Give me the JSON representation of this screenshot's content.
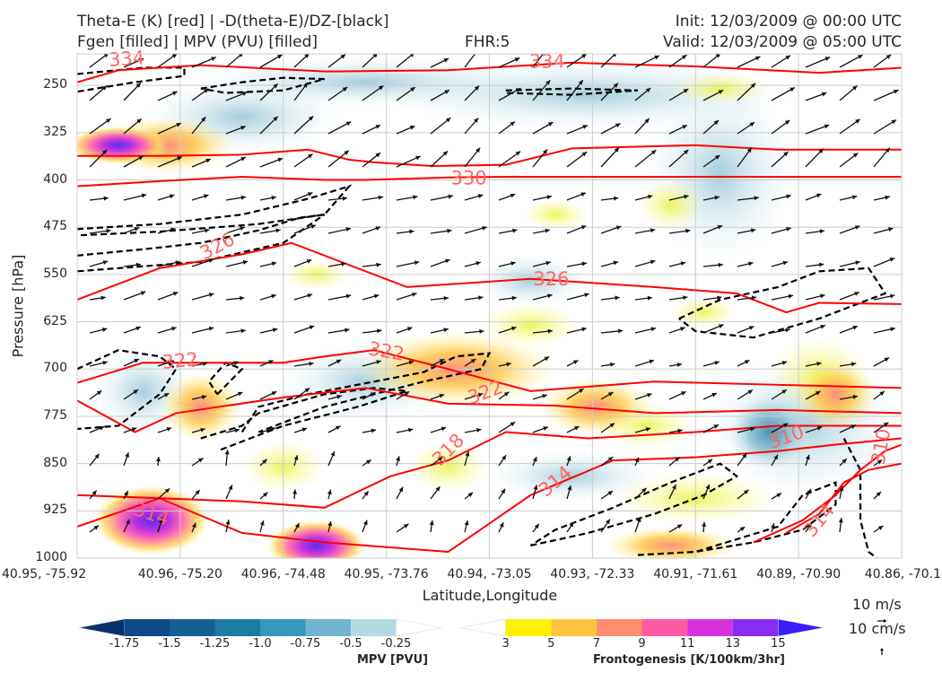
{
  "header": {
    "left_line1": "Theta-E (K) [red] | -D(theta-E)/DZ-[black]",
    "left_line2": "Fgen [filled] | MPV (PVU) [filled]",
    "center": "FHR:5",
    "right_line1": "Init: 12/03/2009 @ 00:00 UTC",
    "right_line2": "Valid: 12/03/2009 @ 05:00 UTC"
  },
  "colors": {
    "theta_e": "#ff0000",
    "theta_e_label": "#ff6666",
    "dtheta_dz": "#000000",
    "mpv_outline": "#a8b6cc",
    "axes_grid": "#cccccc"
  },
  "chart_data": {
    "type": "heatmap",
    "subtype": "vertical cross-section",
    "xlabel": "Latitude,Longitude",
    "ylabel": "Pressure [hPa]",
    "x_ticks": [
      "40.95, -75.92",
      "40.96, -75.20",
      "40.96, -74.48",
      "40.95, -73.76",
      "40.94, -73.05",
      "40.93, -72.33",
      "40.91, -71.61",
      "40.89, -70.90",
      "40.86, -70.1"
    ],
    "y_ticks": [
      "250",
      "325",
      "400",
      "475",
      "550",
      "625",
      "700",
      "775",
      "850",
      "925",
      "1000"
    ],
    "ylim": [
      1000,
      200
    ],
    "theta_e_contours": [
      {
        "label": "334",
        "level": 334
      },
      {
        "label": "330",
        "level": 330
      },
      {
        "label": "326",
        "level": 326
      },
      {
        "label": "322",
        "level": 322
      },
      {
        "label": "318",
        "level": 318
      },
      {
        "label": "314",
        "level": 314
      },
      {
        "label": "310",
        "level": 310
      }
    ],
    "theta_e_labels": [
      {
        "text": "334",
        "p": 208,
        "xfrac": 0.06,
        "rot": -4
      },
      {
        "text": "334",
        "p": 212,
        "xfrac": 0.57,
        "rot": 0
      },
      {
        "text": "330",
        "p": 397,
        "xfrac": 0.475,
        "rot": 0
      },
      {
        "text": "326",
        "p": 505,
        "xfrac": 0.17,
        "rot": -28
      },
      {
        "text": "326",
        "p": 557,
        "xfrac": 0.575,
        "rot": 0
      },
      {
        "text": "322",
        "p": 687,
        "xfrac": 0.125,
        "rot": -5
      },
      {
        "text": "322",
        "p": 672,
        "xfrac": 0.375,
        "rot": 10
      },
      {
        "text": "322",
        "p": 737,
        "xfrac": 0.495,
        "rot": -20
      },
      {
        "text": "318",
        "p": 828,
        "xfrac": 0.45,
        "rot": -45
      },
      {
        "text": "314",
        "p": 878,
        "xfrac": 0.58,
        "rot": -40
      },
      {
        "text": "314",
        "p": 930,
        "xfrac": 0.09,
        "rot": 18
      },
      {
        "text": "314",
        "p": 940,
        "xfrac": 0.9,
        "rot": -50
      },
      {
        "text": "310",
        "p": 808,
        "xfrac": 0.86,
        "rot": -20
      },
      {
        "text": "310",
        "p": 823,
        "xfrac": 0.975,
        "rot": -80
      }
    ],
    "mpv_colorbar": {
      "label": "MPV [PVU]",
      "ticks": [
        "-1.75",
        "-1.5",
        "-1.25",
        "-1.0",
        "-0.75",
        "-0.5",
        "-0.25"
      ],
      "colors": [
        "#08306b",
        "#0d4a87",
        "#155f95",
        "#1c7aa3",
        "#3897bd",
        "#71b4cf",
        "#b5d9e2",
        "#ffffff"
      ]
    },
    "fgen_colorbar": {
      "label": "Frontogenesis [K/100km/3hr]",
      "ticks": [
        "3",
        "5",
        "7",
        "9",
        "11",
        "13",
        "15"
      ],
      "colors": [
        "#ffffff",
        "#fff200",
        "#ffc442",
        "#ff8e6e",
        "#ff5aa4",
        "#d633dd",
        "#8a2cf0",
        "#3a1cff"
      ]
    },
    "wind_ref": {
      "horizontal": "10 m/s",
      "vertical": "10 cm/s"
    }
  }
}
